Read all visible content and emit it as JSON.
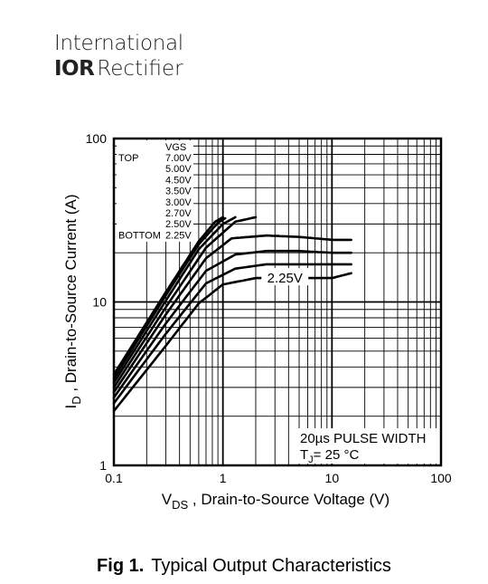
{
  "logo": {
    "line1": "International",
    "brand": "IOR",
    "line2": "Rectifier"
  },
  "caption": {
    "number": "Fig 1.",
    "text": "Typical Output Characteristics"
  },
  "chart_data": {
    "type": "line",
    "title": "",
    "xlabel": "V_DS , Drain-to-Source Voltage (V)",
    "ylabel": "I_D ,  Drain-to-Source Current (A)",
    "x_scale": "log",
    "y_scale": "log",
    "xlim": [
      0.1,
      100
    ],
    "ylim": [
      1,
      100
    ],
    "grid": true,
    "x_ticks": [
      {
        "value": 0.1,
        "label": "0.1"
      },
      {
        "value": 1,
        "label": "1"
      },
      {
        "value": 10,
        "label": "10"
      },
      {
        "value": 100,
        "label": "100"
      }
    ],
    "y_ticks": [
      {
        "value": 1,
        "label": "1"
      },
      {
        "value": 10,
        "label": "10"
      },
      {
        "value": 100,
        "label": "100"
      }
    ],
    "legend": {
      "header": "VGS",
      "placement": "top-left",
      "rows": [
        {
          "prefix": "TOP",
          "value": "7.00V"
        },
        {
          "prefix": "",
          "value": "5.00V"
        },
        {
          "prefix": "",
          "value": "4.50V"
        },
        {
          "prefix": "",
          "value": "3.50V"
        },
        {
          "prefix": "",
          "value": "3.00V"
        },
        {
          "prefix": "",
          "value": "2.70V"
        },
        {
          "prefix": "",
          "value": "2.50V"
        },
        {
          "prefix": "BOTTOM",
          "value": "2.25V"
        }
      ]
    },
    "annotations": {
      "curve_label": "2.25V",
      "pulse_width": "20µs PULSE WIDTH",
      "tj_prefix": "T",
      "tj_sub": "J",
      "tj_value": "= 25 °C"
    },
    "series": [
      {
        "name": "7.00V",
        "x": [
          0.1,
          0.3,
          0.6,
          0.85,
          1.0
        ],
        "y": [
          3.6,
          11.5,
          23.5,
          31,
          33
        ]
      },
      {
        "name": "5.00V",
        "x": [
          0.1,
          0.3,
          0.6,
          0.9,
          1.05
        ],
        "y": [
          3.4,
          11,
          22.5,
          30.5,
          32.5
        ]
      },
      {
        "name": "4.50V",
        "x": [
          0.1,
          0.3,
          0.6,
          1.0,
          1.3
        ],
        "y": [
          3.2,
          10.2,
          21,
          30,
          33
        ]
      },
      {
        "name": "3.50V",
        "x": [
          0.1,
          0.3,
          0.7,
          1.3,
          2.0
        ],
        "y": [
          3.0,
          9.3,
          21.5,
          31,
          33
        ]
      },
      {
        "name": "3.00V",
        "x": [
          0.1,
          0.3,
          0.7,
          1.2,
          2.5,
          5,
          10,
          15
        ],
        "y": [
          2.8,
          8.4,
          18.5,
          24.5,
          25.5,
          25,
          24,
          24
        ]
      },
      {
        "name": "2.70V",
        "x": [
          0.1,
          0.3,
          0.7,
          1.3,
          2.5,
          5,
          10,
          15
        ],
        "y": [
          2.6,
          7.4,
          15.5,
          19.5,
          20.5,
          20.5,
          20,
          20
        ]
      },
      {
        "name": "2.50V",
        "x": [
          0.1,
          0.3,
          0.7,
          1.3,
          2.5,
          5,
          10,
          15
        ],
        "y": [
          2.4,
          6.4,
          13,
          16,
          17,
          17,
          17,
          17
        ]
      },
      {
        "name": "2.25V",
        "x": [
          0.1,
          0.3,
          0.6,
          1.0,
          2.0,
          5,
          10,
          15
        ],
        "y": [
          2.15,
          5.4,
          9.8,
          12.8,
          14,
          14,
          14,
          15
        ]
      }
    ]
  }
}
